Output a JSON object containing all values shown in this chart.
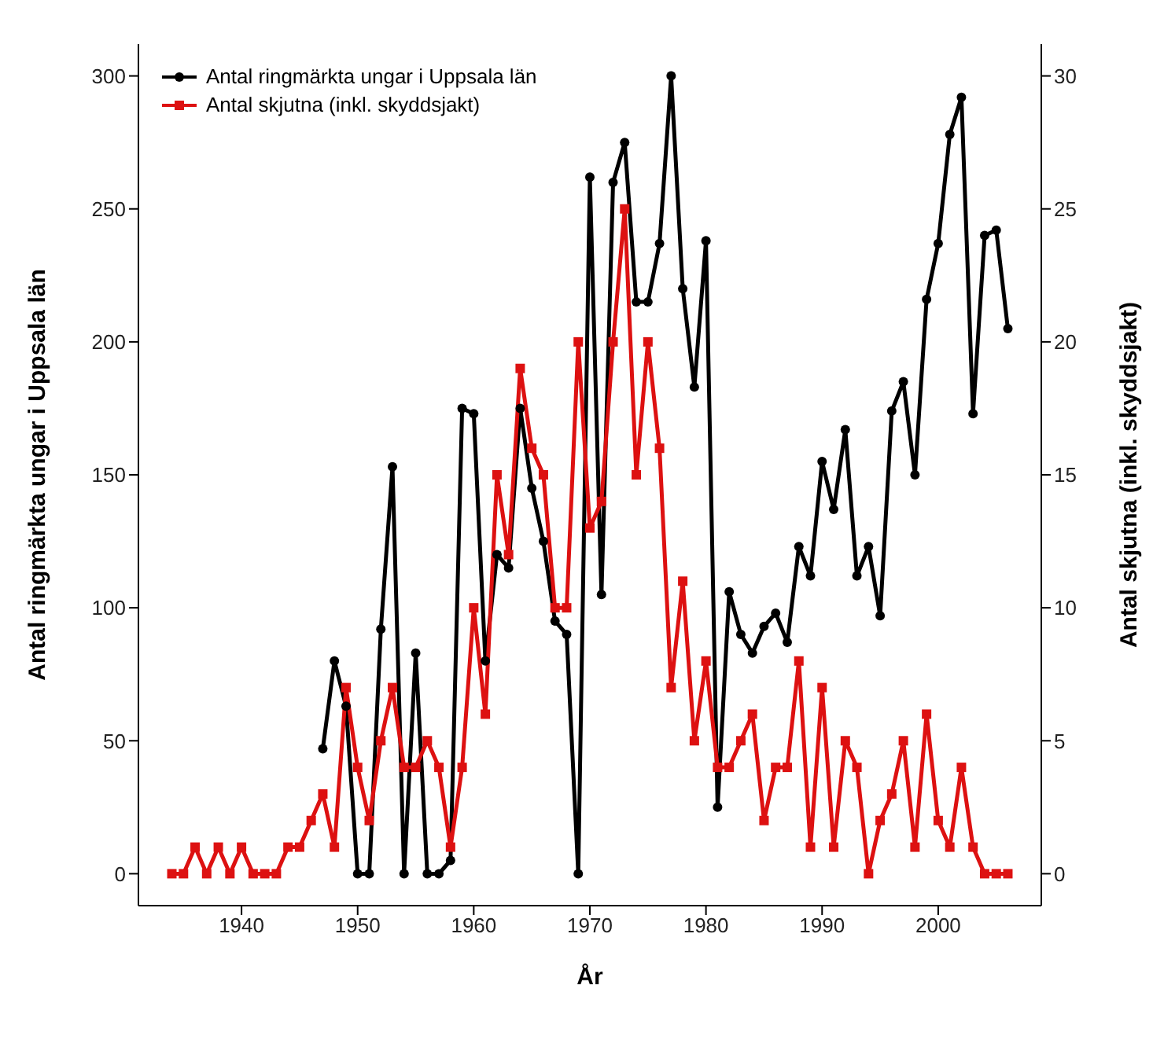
{
  "chart_data": {
    "type": "line",
    "xlabel": "År",
    "ylabel": "Antal ringmärkta ungar i Uppsala län",
    "y2label": "Antal skjutna (inkl. skyddsjakt)",
    "xlim": [
      1931.12,
      2008.88
    ],
    "xticks": [
      1940,
      1950,
      1960,
      1970,
      1980,
      1990,
      2000
    ],
    "ylim": [
      -12,
      312
    ],
    "yticks": [
      0,
      50,
      100,
      150,
      200,
      250,
      300
    ],
    "y2lim": [
      -1.2,
      31.2
    ],
    "y2ticks": [
      0,
      5,
      10,
      15,
      20,
      25,
      30
    ],
    "legend": "top left",
    "grid": false,
    "series": [
      {
        "name": "Antal ringmärkta ungar i Uppsala län",
        "color": "#000000",
        "marker": "circle",
        "x": [
          1947,
          1948,
          1949,
          1950,
          1951,
          1952,
          1953,
          1954,
          1955,
          1956,
          1957,
          1958,
          1959,
          1960,
          1961,
          1962,
          1963,
          1964,
          1965,
          1966,
          1967,
          1968,
          1969,
          1970,
          1971,
          1972,
          1973,
          1974,
          1975,
          1976,
          1977,
          1978,
          1979,
          1980,
          1981,
          1982,
          1983,
          1984,
          1985,
          1986,
          1987,
          1988,
          1989,
          1990,
          1991,
          1992,
          1993,
          1994,
          1995,
          1996,
          1997,
          1998,
          1999,
          2000,
          2001,
          2002,
          2003,
          2004,
          2005,
          2006
        ],
        "values": [
          47,
          80,
          63,
          0,
          0,
          92,
          153,
          0,
          83,
          0,
          0,
          5,
          175,
          173,
          80,
          120,
          115,
          175,
          145,
          125,
          95,
          90,
          0,
          262,
          105,
          260,
          275,
          215,
          215,
          237,
          300,
          220,
          183,
          238,
          25,
          106,
          90,
          83,
          93,
          98,
          87,
          123,
          112,
          155,
          137,
          167,
          112,
          123,
          97,
          174,
          185,
          150,
          216,
          237,
          278,
          292,
          173,
          240,
          242,
          205
        ]
      },
      {
        "name": "Antal skjutna (inkl. skyddsjakt)",
        "color": "#dd1111",
        "marker": "square",
        "axis": "y2",
        "x": [
          1934,
          1935,
          1936,
          1937,
          1938,
          1939,
          1940,
          1941,
          1942,
          1943,
          1944,
          1945,
          1946,
          1947,
          1948,
          1949,
          1950,
          1951,
          1952,
          1953,
          1954,
          1955,
          1956,
          1957,
          1958,
          1959,
          1960,
          1961,
          1962,
          1963,
          1964,
          1965,
          1966,
          1967,
          1968,
          1969,
          1970,
          1971,
          1972,
          1973,
          1974,
          1975,
          1976,
          1977,
          1978,
          1979,
          1980,
          1981,
          1982,
          1983,
          1984,
          1985,
          1986,
          1987,
          1988,
          1989,
          1990,
          1991,
          1992,
          1993,
          1994,
          1995,
          1996,
          1997,
          1998,
          1999,
          2000,
          2001,
          2002,
          2003,
          2004,
          2005,
          2006
        ],
        "values": [
          0,
          0,
          1,
          0,
          1,
          0,
          1,
          0,
          0,
          0,
          1,
          1,
          2,
          3,
          1,
          7,
          4,
          2,
          5,
          7,
          4,
          4,
          5,
          4,
          1,
          4,
          10,
          6,
          15,
          12,
          19,
          16,
          15,
          10,
          10,
          20,
          13,
          14,
          20,
          25,
          15,
          20,
          16,
          7,
          11,
          5,
          8,
          4,
          4,
          5,
          6,
          2,
          4,
          4,
          8,
          1,
          7,
          1,
          5,
          4,
          0,
          2,
          3,
          5,
          1,
          6,
          2,
          1,
          4,
          1,
          0,
          0,
          0
        ]
      }
    ]
  }
}
